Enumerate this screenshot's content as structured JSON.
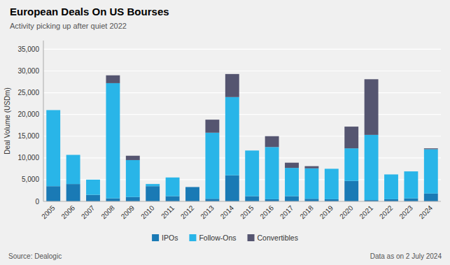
{
  "chart_data": {
    "type": "bar",
    "title": "European Deals On US Bourses",
    "subtitle": "Activity picking up after quiet 2022",
    "ylabel": "Deal Volume (USDm)",
    "annotations": [
      "Source: Dealogic",
      "Data as on 2 July 2024"
    ],
    "categories": [
      "2005",
      "2006",
      "2007",
      "2008",
      "2009",
      "2010",
      "2011",
      "2012",
      "2013",
      "2014",
      "2015",
      "2016",
      "2017",
      "2018",
      "2019",
      "2020",
      "2021",
      "2022",
      "2023",
      "2024"
    ],
    "series": [
      {
        "name": "IPOs",
        "color": "#1a7ab5",
        "values": [
          3500,
          4000,
          1500,
          700,
          1000,
          3500,
          1200,
          3300,
          600,
          6000,
          1200,
          500,
          1200,
          600,
          500,
          4700,
          300,
          500,
          700,
          1800
        ]
      },
      {
        "name": "Follow-Ons",
        "color": "#29b5e8",
        "values": [
          17500,
          6700,
          3500,
          26500,
          8500,
          500,
          4300,
          0,
          15200,
          18000,
          10500,
          12000,
          6500,
          7000,
          7000,
          7500,
          15000,
          5700,
          6200,
          10200
        ]
      },
      {
        "name": "Convertibles",
        "color": "#555570",
        "values": [
          0,
          0,
          0,
          1800,
          1000,
          0,
          0,
          0,
          3000,
          5300,
          0,
          2500,
          1200,
          500,
          0,
          5000,
          12800,
          0,
          0,
          200
        ]
      }
    ],
    "stacked": true,
    "ylim": [
      0,
      37000
    ],
    "yticks": [
      0,
      {
        "value": 5000,
        "label": "5,000"
      },
      {
        "value": 10000,
        "label": "10,000"
      },
      {
        "value": 15000,
        "label": "15,000"
      },
      {
        "value": 20000,
        "label": "20,000"
      },
      {
        "value": 25000,
        "label": "25,000"
      },
      {
        "value": 30000,
        "label": "30,000"
      },
      {
        "value": 35000,
        "label": "35,000"
      }
    ],
    "grid": true,
    "legend": "bottom"
  }
}
